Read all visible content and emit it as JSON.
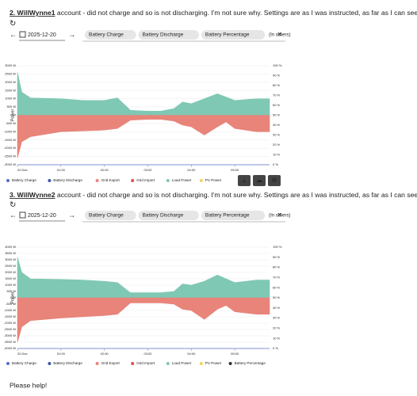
{
  "posts": [
    {
      "heading_title": "2. WillWynne1",
      "heading_text": " account - did not charge and so is not discharging. I'm not sure why. Settings are as I was instructed, as far as I can see:",
      "date": "2025-12-20",
      "chips": [
        "Battery Charge",
        "Battery Discharge",
        "Battery Percentage"
      ],
      "placeholder": "(In others)",
      "chart": {
        "type": "area",
        "ylabel": "Power",
        "xlim": [
          0,
          5.8
        ],
        "xticks": [
          {
            "value": 0,
            "label": "20 Dec"
          },
          {
            "value": 1,
            "label": "01:00"
          },
          {
            "value": 2,
            "label": "02:00"
          },
          {
            "value": 3,
            "label": "03:00"
          },
          {
            "value": 4,
            "label": "04:00"
          },
          {
            "value": 5,
            "label": "05:00"
          }
        ],
        "ylim": [
          -3000,
          3000
        ],
        "yticks": [
          {
            "value": 3000,
            "label": "3000 W"
          },
          {
            "value": 2500,
            "label": "2500 W"
          },
          {
            "value": 2000,
            "label": "2000 W"
          },
          {
            "value": 1500,
            "label": "1500 W"
          },
          {
            "value": 1000,
            "label": "1000 W"
          },
          {
            "value": 500,
            "label": "500 W"
          },
          {
            "value": 0,
            "label": "0 W"
          },
          {
            "value": -500,
            "label": "-500 W"
          },
          {
            "value": -1000,
            "label": "-1000 W"
          },
          {
            "value": -1500,
            "label": "-1500 W"
          },
          {
            "value": -2000,
            "label": "-2000 W"
          },
          {
            "value": -2500,
            "label": "-2500 W"
          },
          {
            "value": -3000,
            "label": "-3000 W"
          }
        ],
        "y2lim": [
          0,
          100
        ],
        "y2ticks": [
          {
            "value": 100,
            "label": "100 %"
          },
          {
            "value": 90,
            "label": "90 %"
          },
          {
            "value": 80,
            "label": "80 %"
          },
          {
            "value": 70,
            "label": "70 %"
          },
          {
            "value": 60,
            "label": "60 %"
          },
          {
            "value": 50,
            "label": "50 %"
          },
          {
            "value": 40,
            "label": "40 %"
          },
          {
            "value": 30,
            "label": "30 %"
          },
          {
            "value": 20,
            "label": "20 %"
          },
          {
            "value": 10,
            "label": "10 %"
          },
          {
            "value": 0,
            "label": "0 %"
          }
        ],
        "x": [
          0,
          0.1,
          0.3,
          1,
          1.5,
          2,
          2.3,
          2.6,
          3,
          3.3,
          3.6,
          3.8,
          4,
          4.3,
          4.6,
          4.8,
          5,
          5.5,
          5.8
        ],
        "series": [
          {
            "name": "Load Power",
            "color": "#7fc8b4",
            "values": [
              2600,
              1400,
              1050,
              1000,
              900,
              900,
              1050,
              300,
              250,
              250,
              400,
              800,
              700,
              1000,
              1300,
              1100,
              900,
              1000,
              1000
            ]
          },
          {
            "name": "Grid Export",
            "color": "#e8847a",
            "values": [
              -2600,
              -1600,
              -1300,
              -1000,
              -950,
              -900,
              -800,
              -300,
              -250,
              -250,
              -350,
              -600,
              -700,
              -1200,
              -700,
              -400,
              -800,
              -1000,
              -1000
            ]
          }
        ],
        "legend": [
          {
            "name": "Battery Charge",
            "color": "#5470c6"
          },
          {
            "name": "Battery Discharge",
            "color": "#3b5ba5"
          },
          {
            "name": "Grid Export",
            "color": "#e8847a"
          },
          {
            "name": "Grid Import",
            "color": "#d9534f"
          },
          {
            "name": "Load Power",
            "color": "#7fc8b4"
          },
          {
            "name": "PV Power",
            "color": "#f2d35b"
          }
        ]
      }
    },
    {
      "heading_title": "3. WillWynne2",
      "heading_text": " account - did not charge and so is not discharging. I'm not sure why. Settings are as I was instructed, as far as I can see:",
      "date": "2025-12-20",
      "chips": [
        "Battery Charge",
        "Battery Discharge",
        "Battery Percentage"
      ],
      "placeholder": "(In others)",
      "chart": {
        "type": "area",
        "ylabel": "Power",
        "xlim": [
          0,
          5.8
        ],
        "xticks": [
          {
            "value": 0,
            "label": "20 Dec"
          },
          {
            "value": 1,
            "label": "01:00"
          },
          {
            "value": 2,
            "label": "02:00"
          },
          {
            "value": 3,
            "label": "03:00"
          },
          {
            "value": 4,
            "label": "04:00"
          },
          {
            "value": 5,
            "label": "05:00"
          }
        ],
        "ylim": [
          -4000,
          4000
        ],
        "yticks": [
          {
            "value": 4000,
            "label": "4000 W"
          },
          {
            "value": 3500,
            "label": "3500 W"
          },
          {
            "value": 3000,
            "label": "3000 W"
          },
          {
            "value": 2500,
            "label": "2500 W"
          },
          {
            "value": 2000,
            "label": "2000 W"
          },
          {
            "value": 1500,
            "label": "1500 W"
          },
          {
            "value": 1000,
            "label": "1000 W"
          },
          {
            "value": 500,
            "label": "500 W"
          },
          {
            "value": 0,
            "label": "0 W"
          },
          {
            "value": -500,
            "label": "-500 W"
          },
          {
            "value": -1000,
            "label": "-1000 W"
          },
          {
            "value": -1500,
            "label": "-1500 W"
          },
          {
            "value": -2000,
            "label": "-2000 W"
          },
          {
            "value": -2500,
            "label": "-2500 W"
          },
          {
            "value": -3000,
            "label": "-3000 W"
          },
          {
            "value": -3500,
            "label": "-3500 W"
          },
          {
            "value": -4000,
            "label": "-4000 W"
          }
        ],
        "y2lim": [
          0,
          100
        ],
        "y2ticks": [
          {
            "value": 100,
            "label": "100 %"
          },
          {
            "value": 90,
            "label": "90 %"
          },
          {
            "value": 80,
            "label": "80 %"
          },
          {
            "value": 70,
            "label": "70 %"
          },
          {
            "value": 60,
            "label": "60 %"
          },
          {
            "value": 50,
            "label": "50 %"
          },
          {
            "value": 40,
            "label": "40 %"
          },
          {
            "value": 30,
            "label": "30 %"
          },
          {
            "value": 20,
            "label": "20 %"
          },
          {
            "value": 10,
            "label": "10 %"
          },
          {
            "value": 0,
            "label": "0 %"
          }
        ],
        "x": [
          0,
          0.1,
          0.3,
          1,
          1.5,
          2,
          2.3,
          2.6,
          3,
          3.3,
          3.6,
          3.8,
          4,
          4.3,
          4.6,
          4.8,
          5,
          5.5,
          5.8
        ],
        "series": [
          {
            "name": "Load Power",
            "color": "#7fc8b4",
            "values": [
              3200,
              2000,
              1500,
              1450,
              1400,
              1300,
              1200,
              400,
              400,
              400,
              500,
              1100,
              1000,
              1300,
              1800,
              1500,
              1200,
              1400,
              1400
            ]
          },
          {
            "name": "Grid Export",
            "color": "#e8847a",
            "values": [
              -3500,
              -2300,
              -1800,
              -1600,
              -1500,
              -1400,
              -1300,
              -400,
              -400,
              -400,
              -500,
              -900,
              -1000,
              -1700,
              -900,
              -600,
              -1100,
              -1300,
              -1300
            ]
          }
        ],
        "legend": [
          {
            "name": "Battery Charge",
            "color": "#5470c6"
          },
          {
            "name": "Battery Discharge",
            "color": "#3b5ba5"
          },
          {
            "name": "Grid Export",
            "color": "#e8847a"
          },
          {
            "name": "Grid Import",
            "color": "#d9534f"
          },
          {
            "name": "Load Power",
            "color": "#7fc8b4"
          },
          {
            "name": "PV Power",
            "color": "#f2d35b"
          },
          {
            "name": "Battery Percentage",
            "color": "#333333"
          }
        ]
      }
    }
  ],
  "closing": "Please help!"
}
